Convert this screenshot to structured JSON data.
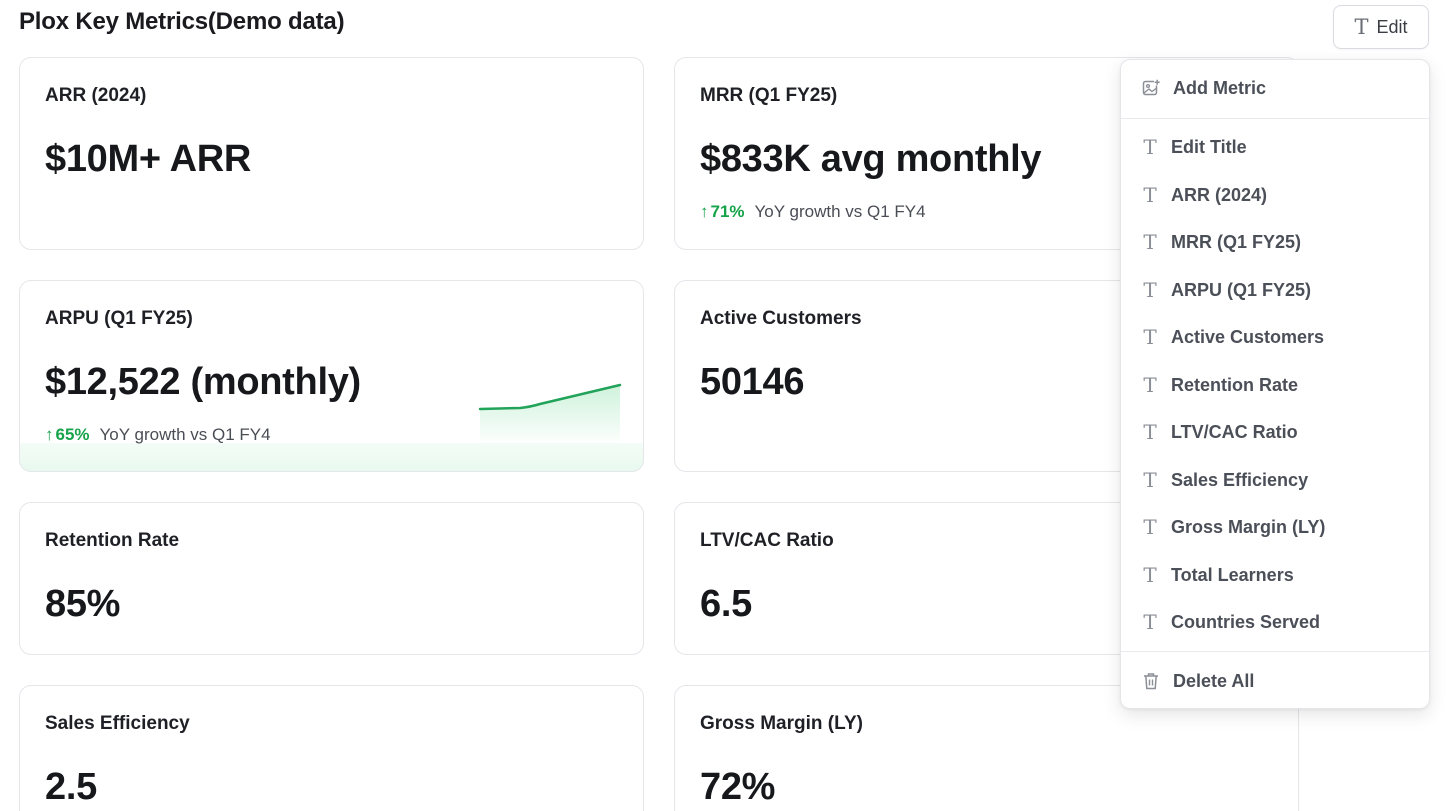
{
  "page": {
    "title": "Plox Key Metrics(Demo data)"
  },
  "toolbar": {
    "edit_label": "Edit",
    "edit_icon": "text-t-icon"
  },
  "metrics": [
    {
      "label": "ARR (2024)",
      "value": "$10M+ ARR"
    },
    {
      "label": "MRR (Q1 FY25)",
      "value": "$833K avg monthly",
      "delta_pct": "71%",
      "delta_text": "YoY growth vs Q1 FY4"
    },
    {
      "label": "ARPU (Q1 FY25)",
      "value": "$12,522 (monthly)",
      "delta_pct": "65%",
      "delta_text": "YoY growth vs Q1 FY4"
    },
    {
      "label": "Active Customers",
      "value": "50146"
    },
    {
      "label": "Retention Rate",
      "value": "85%"
    },
    {
      "label": "LTV/CAC Ratio",
      "value": "6.5"
    },
    {
      "label": "Sales Efficiency",
      "value": "2.5"
    },
    {
      "label": "Gross Margin (LY)",
      "value": "72%"
    }
  ],
  "colors": {
    "positive": "#16a34a",
    "sparkline": "#22a35a",
    "border": "#e4e6ea"
  },
  "menu": {
    "add_label": "Add Metric",
    "add_icon": "image-plus-icon",
    "items": [
      "Edit Title",
      "ARR (2024)",
      "MRR (Q1 FY25)",
      "ARPU (Q1 FY25)",
      "Active Customers",
      "Retention Rate",
      "LTV/CAC Ratio",
      "Sales Efficiency",
      "Gross Margin (LY)",
      "Total Learners",
      "Countries Served"
    ],
    "item_icon": "text-t-icon",
    "delete_label": "Delete All",
    "delete_icon": "trash-icon"
  }
}
